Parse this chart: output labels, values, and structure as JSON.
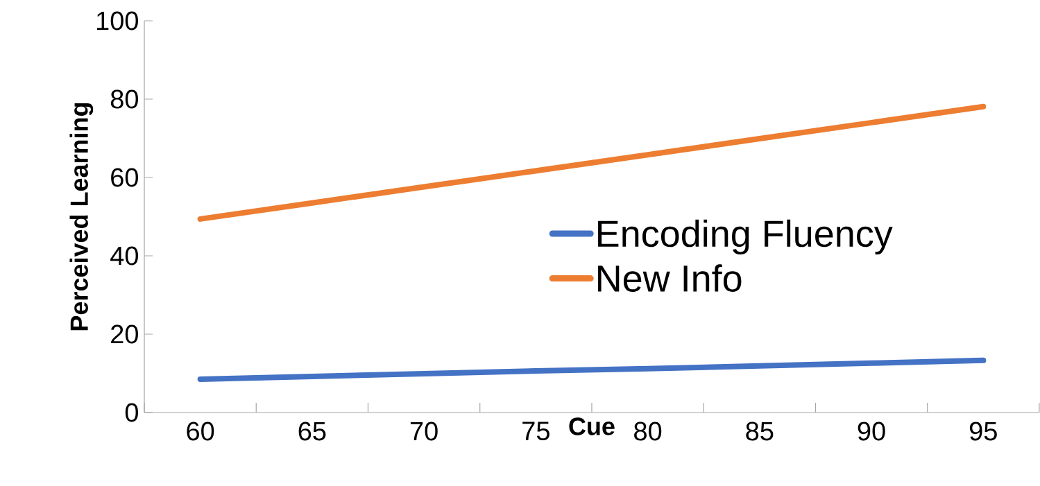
{
  "chart_data": {
    "type": "line",
    "xlabel": "Cue",
    "ylabel": "Perceived Learning",
    "categories": [
      "60",
      "65",
      "70",
      "75",
      "80",
      "85",
      "90",
      "95"
    ],
    "series": [
      {
        "name": "Encoding Fluency",
        "color": "#4472c4",
        "values": [
          8.5,
          9.2,
          9.9,
          10.6,
          11.2,
          11.9,
          12.6,
          13.3
        ]
      },
      {
        "name": "New Info",
        "color": "#ed7d31",
        "values": [
          49.4,
          53.5,
          57.6,
          61.7,
          65.8,
          69.9,
          74.0,
          78.1
        ]
      }
    ],
    "ylim": [
      0,
      100
    ],
    "yticks": [
      0,
      20,
      40,
      60,
      80,
      100
    ],
    "legend": "right",
    "grid": false,
    "marker": "none",
    "line_style": "solid"
  }
}
